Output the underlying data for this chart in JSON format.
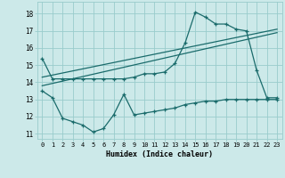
{
  "xlabel": "Humidex (Indice chaleur)",
  "bg_color": "#cce9e9",
  "line_color": "#1a6b6b",
  "grid_color": "#99cccc",
  "xlim": [
    -0.5,
    23.5
  ],
  "ylim": [
    10.7,
    18.7
  ],
  "yticks": [
    11,
    12,
    13,
    14,
    15,
    16,
    17,
    18
  ],
  "xticks": [
    0,
    1,
    2,
    3,
    4,
    5,
    6,
    7,
    8,
    9,
    10,
    11,
    12,
    13,
    14,
    15,
    16,
    17,
    18,
    19,
    20,
    21,
    22,
    23
  ],
  "series1_x": [
    0,
    1,
    2,
    3,
    4,
    5,
    6,
    7,
    8,
    9,
    10,
    11,
    12,
    13,
    14,
    15,
    16,
    17,
    18,
    19,
    20,
    21,
    22,
    23
  ],
  "series1_y": [
    15.4,
    14.2,
    14.2,
    14.2,
    14.2,
    14.2,
    14.2,
    14.2,
    14.2,
    14.3,
    14.5,
    14.5,
    14.6,
    15.1,
    16.3,
    18.1,
    17.8,
    17.4,
    17.4,
    17.1,
    17.0,
    14.7,
    13.1,
    13.1
  ],
  "series2_x": [
    0,
    1,
    2,
    3,
    4,
    5,
    6,
    7,
    8,
    9,
    10,
    11,
    12,
    13,
    14,
    15,
    16,
    17,
    18,
    19,
    20,
    21,
    22,
    23
  ],
  "series2_y": [
    13.5,
    13.1,
    11.9,
    11.7,
    11.5,
    11.1,
    11.3,
    12.1,
    13.3,
    12.1,
    12.2,
    12.3,
    12.4,
    12.5,
    12.7,
    12.8,
    12.9,
    12.9,
    13.0,
    13.0,
    13.0,
    13.0,
    13.0,
    13.0
  ],
  "series3_x": [
    0,
    23
  ],
  "series3_y": [
    13.8,
    16.9
  ],
  "series4_x": [
    0,
    23
  ],
  "series4_y": [
    14.3,
    17.1
  ]
}
